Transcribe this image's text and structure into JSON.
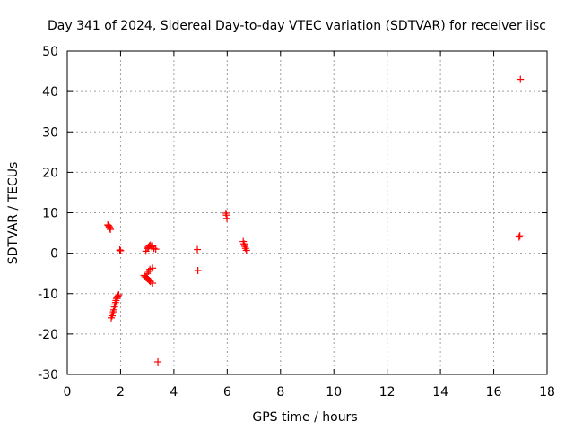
{
  "chart_data": {
    "type": "scatter",
    "title": "Day 341 of 2024, Sidereal Day-to-day VTEC variation (SDTVAR) for receiver iisc",
    "xlabel": "GPS time / hours",
    "ylabel": "SDTVAR / TECUs",
    "xlim": [
      0,
      18
    ],
    "ylim": [
      -30,
      50
    ],
    "xticks": [
      "0",
      "2",
      "4",
      "6",
      "8",
      "10",
      "12",
      "14",
      "16",
      "18"
    ],
    "yticks": [
      "-30",
      "-20",
      "-10",
      "0",
      "10",
      "20",
      "30",
      "40",
      "50"
    ],
    "grid": true,
    "marker_color": "#ff0000",
    "series": [
      {
        "name": "iisc",
        "points": [
          [
            1.52,
            7.0
          ],
          [
            1.55,
            6.8
          ],
          [
            1.58,
            6.5
          ],
          [
            1.6,
            6.2
          ],
          [
            1.62,
            5.9
          ],
          [
            1.65,
            -16.0
          ],
          [
            1.68,
            -15.5
          ],
          [
            1.7,
            -15.0
          ],
          [
            1.73,
            -14.5
          ],
          [
            1.75,
            -14.0
          ],
          [
            1.77,
            -13.3
          ],
          [
            1.79,
            -12.8
          ],
          [
            1.81,
            -12.2
          ],
          [
            1.83,
            -11.7
          ],
          [
            1.85,
            -11.2
          ],
          [
            1.87,
            -10.9
          ],
          [
            1.9,
            -10.6
          ],
          [
            1.93,
            -10.3
          ],
          [
            1.97,
            0.8
          ],
          [
            2.0,
            0.6
          ],
          [
            2.88,
            -5.5
          ],
          [
            2.92,
            -5.8
          ],
          [
            2.96,
            -6.0
          ],
          [
            3.0,
            -6.2
          ],
          [
            3.04,
            -6.5
          ],
          [
            3.08,
            -6.8
          ],
          [
            3.12,
            -7.0
          ],
          [
            3.2,
            -7.4
          ],
          [
            2.95,
            0.5
          ],
          [
            3.0,
            1.2
          ],
          [
            3.04,
            1.5
          ],
          [
            3.08,
            1.8
          ],
          [
            3.12,
            2.0
          ],
          [
            3.16,
            1.6
          ],
          [
            3.2,
            1.8
          ],
          [
            3.25,
            1.2
          ],
          [
            3.32,
            1.0
          ],
          [
            3.0,
            -5.0
          ],
          [
            3.05,
            -4.5
          ],
          [
            3.1,
            -4.0
          ],
          [
            3.2,
            -3.7
          ],
          [
            3.4,
            -26.9
          ],
          [
            4.88,
            0.9
          ],
          [
            4.9,
            -4.3
          ],
          [
            5.95,
            9.9
          ],
          [
            5.97,
            9.4
          ],
          [
            5.99,
            8.6
          ],
          [
            6.6,
            2.9
          ],
          [
            6.63,
            2.3
          ],
          [
            6.66,
            1.7
          ],
          [
            6.69,
            1.2
          ],
          [
            6.72,
            0.7
          ],
          [
            16.95,
            4.0
          ],
          [
            16.98,
            4.3
          ],
          [
            17.0,
            43.0
          ]
        ]
      }
    ]
  }
}
